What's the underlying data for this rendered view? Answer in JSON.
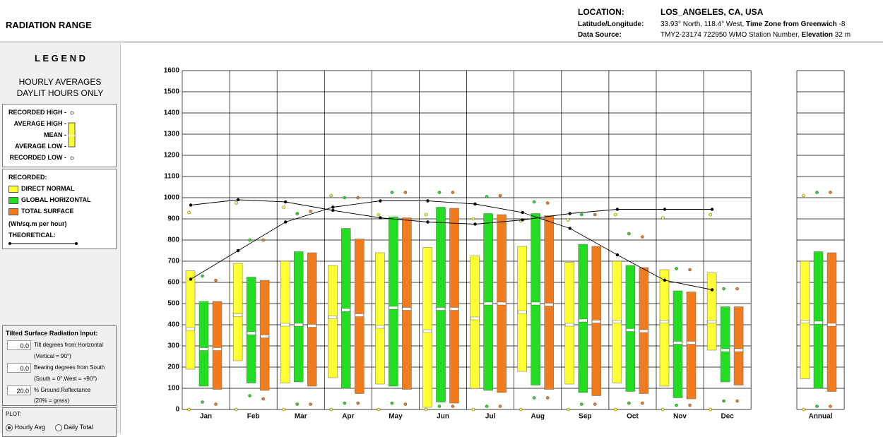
{
  "header": {
    "title": "RADIATION RANGE",
    "location_label": "LOCATION:",
    "location": "LOS_ANGELES, CA, USA",
    "latlon_label": "Latitude/Longitude:",
    "latlon": "33.93° North, 118.4° West,",
    "timezone_label": "Time Zone from Greenwich",
    "timezone": "-8",
    "data_source_label": "Data Source:",
    "data_source": "TMY2-23174    722950 WMO Station Number,",
    "elevation_label": "Elevation",
    "elevation": "32 m"
  },
  "legend": {
    "title": "L E G E N D",
    "subtitle_1": "HOURLY AVERAGES",
    "subtitle_2": "DAYLIT HOURS ONLY",
    "recorded_high": "RECORDED HIGH -",
    "average_high": "AVERAGE HIGH -",
    "mean": "MEAN -",
    "average_low": "AVERAGE LOW -",
    "recorded_low": "RECORDED LOW -",
    "recorded_label": "RECORDED:",
    "units": "(Wh/sq.m per hour)"
  },
  "inputs": {
    "title": "Tilted Surface Radiation Input:",
    "tilt": "0.0",
    "tilt_label": "Tilt degrees from Horizontal",
    "tilt_note": "(Vertical = 90°)",
    "bearing": "0.0",
    "bearing_label": "Bearing degrees from South",
    "bearing_note": "(South = 0°,West = +90°)",
    "reflectance": "20.0",
    "reflectance_label": "% Ground Reflectance",
    "reflectance_note": "(20% = grass)"
  },
  "plot": {
    "title": "PLOT:",
    "option_1": "Hourly Avg",
    "option_2": "Daily Total"
  },
  "chart_data": {
    "type": "range",
    "categories": [
      "Jan",
      "Feb",
      "Mar",
      "Apr",
      "May",
      "Jun",
      "Jul",
      "Aug",
      "Sep",
      "Oct",
      "Nov",
      "Dec",
      "Annual"
    ],
    "series": [
      {
        "name": "DIRECT NORMAL",
        "color": "#ffff33",
        "avg_low": [
          190,
          230,
          125,
          150,
          120,
          10,
          100,
          180,
          120,
          125,
          110,
          280,
          145
        ],
        "mean": [
          380,
          445,
          400,
          435,
          390,
          370,
          430,
          460,
          400,
          415,
          415,
          415,
          415
        ],
        "avg_high": [
          655,
          690,
          700,
          680,
          740,
          765,
          725,
          770,
          695,
          700,
          660,
          645,
          700
        ],
        "recorded_high": [
          930,
          975,
          955,
          1010,
          920,
          920,
          900,
          890,
          895,
          920,
          905,
          920,
          1010
        ],
        "recorded_low": [
          0,
          0,
          0,
          0,
          0,
          0,
          0,
          0,
          0,
          0,
          0,
          0,
          0
        ]
      },
      {
        "name": "GLOBAL HORIZONTAL",
        "color": "#22dd22",
        "avg_low": [
          110,
          125,
          130,
          100,
          110,
          35,
          90,
          115,
          80,
          85,
          55,
          130,
          100
        ],
        "mean": [
          285,
          360,
          400,
          470,
          480,
          475,
          500,
          500,
          420,
          375,
          315,
          280,
          410
        ],
        "avg_high": [
          510,
          625,
          745,
          855,
          910,
          955,
          925,
          925,
          780,
          680,
          560,
          485,
          745
        ],
        "recorded_high": [
          630,
          800,
          925,
          1000,
          1025,
          1025,
          1005,
          980,
          920,
          830,
          665,
          570,
          1025
        ],
        "recorded_low": [
          35,
          65,
          25,
          30,
          30,
          15,
          15,
          55,
          25,
          30,
          20,
          40,
          15
        ]
      },
      {
        "name": "TOTAL SURFACE",
        "color": "#f07c1e",
        "avg_low": [
          95,
          90,
          110,
          75,
          95,
          30,
          80,
          95,
          65,
          75,
          50,
          115,
          85
        ],
        "mean": [
          285,
          345,
          395,
          445,
          475,
          475,
          500,
          495,
          415,
          370,
          315,
          280,
          400
        ],
        "avg_high": [
          510,
          610,
          740,
          805,
          905,
          950,
          920,
          915,
          770,
          670,
          555,
          485,
          740
        ],
        "recorded_high": [
          610,
          800,
          935,
          1000,
          1025,
          1025,
          1010,
          975,
          920,
          815,
          660,
          570,
          1025
        ],
        "recorded_low": [
          25,
          50,
          25,
          30,
          25,
          15,
          15,
          55,
          25,
          30,
          20,
          40,
          15
        ]
      }
    ],
    "theoretical_label": "THEORETICAL:",
    "theoretical": [
      [
        965,
        990,
        980,
        940,
        905,
        885,
        875,
        895,
        925,
        945,
        945,
        945
      ],
      [
        615,
        750,
        885,
        955,
        985,
        985,
        970,
        930,
        855,
        730,
        610,
        565
      ]
    ],
    "ylim": [
      0,
      1600
    ],
    "yticks": [
      0,
      100,
      200,
      300,
      400,
      500,
      600,
      700,
      800,
      900,
      1000,
      1100,
      1200,
      1300,
      1400,
      1500,
      1600
    ]
  }
}
